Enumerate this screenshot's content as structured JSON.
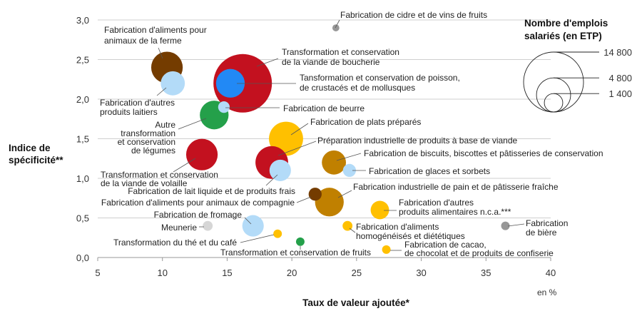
{
  "chart_data": {
    "type": "scatter",
    "subtype": "bubble",
    "xlabel": "Taux de valeur ajoutée*",
    "xunit": "en %",
    "ylabel": [
      "Indice de",
      "spécificité**"
    ],
    "xlim": [
      5,
      40
    ],
    "ylim": [
      0,
      3.0
    ],
    "xticks": [
      "5",
      "10",
      "15",
      "20",
      "25",
      "30",
      "35",
      "40"
    ],
    "yticks": [
      "0,0",
      "0,5",
      "1,0",
      "1,5",
      "2,0",
      "2,5",
      "3,0"
    ],
    "grid": "horizontal",
    "size_legend": {
      "title": [
        "Nombre d'emplois",
        "salariés (en ETP)"
      ],
      "placement": "top-right",
      "entries": [
        {
          "value": 14800,
          "label": "14 800"
        },
        {
          "value": 4800,
          "label": "4 800"
        },
        {
          "value": 1400,
          "label": "1 400"
        }
      ]
    },
    "colors": {
      "red": "#c3111f",
      "dark_brown": "#743c00",
      "ochre": "#c08000",
      "yellow": "#ffc000",
      "light_blue": "#b3dbf8",
      "blue": "#2289f5",
      "green": "#24a04a",
      "grey": "#979797",
      "light_grey": "#d6d6d6"
    },
    "points": [
      {
        "label": [
          "Fabrication de cidre et de vins de fruits"
        ],
        "x": 23.4,
        "y": 2.9,
        "size": 200,
        "color": "#979797"
      },
      {
        "label": [
          "Fabrication d'aliments pour",
          "animaux de la ferme"
        ],
        "x": 10.35,
        "y": 2.4,
        "size": 4100,
        "color": "#743c00"
      },
      {
        "label": [
          "Fabrication d'autres",
          "produits laitiers"
        ],
        "x": 10.8,
        "y": 2.2,
        "size": 2400,
        "color": "#b3dbf8"
      },
      {
        "label": [
          "Transformation et conservation",
          "de la viande de boucherie"
        ],
        "x": 16.2,
        "y": 2.2,
        "size": 14100,
        "color": "#c3111f"
      },
      {
        "label": [
          "Tansformation et conservation de poisson,",
          "de crustacés et de mollusques"
        ],
        "x": 15.25,
        "y": 2.2,
        "size": 3400,
        "color": "#2289f5"
      },
      {
        "label": [
          "Fabrication de beurre"
        ],
        "x": 14.75,
        "y": 1.9,
        "size": 550,
        "color": "#b3dbf8"
      },
      {
        "label": [
          "Autre",
          "transformation",
          "et conservation",
          "de légumes"
        ],
        "x": 14.0,
        "y": 1.8,
        "size": 3400,
        "color": "#24a04a"
      },
      {
        "label": [
          "Fabrication de plats préparés"
        ],
        "x": 19.55,
        "y": 1.5,
        "size": 4800,
        "color": "#ffc000"
      },
      {
        "label": [
          "Transformation et conservation",
          "de la viande de volaille"
        ],
        "x": 13.05,
        "y": 1.3,
        "size": 4100,
        "color": "#c3111f"
      },
      {
        "label": [
          "Préparation industrielle de produits à base de viande"
        ],
        "x": 18.45,
        "y": 1.2,
        "size": 4400,
        "color": "#c3111f"
      },
      {
        "label": [
          "Fabrication de lait liquide et de produits frais"
        ],
        "x": 19.1,
        "y": 1.1,
        "size": 1900,
        "color": "#b3dbf8"
      },
      {
        "label": [
          "Fabrication de biscuits, biscottes et pâtisseries de conservation"
        ],
        "x": 23.25,
        "y": 1.2,
        "size": 2400,
        "color": "#c08000"
      },
      {
        "label": [
          "Fabrication de glaces et sorbets"
        ],
        "x": 24.45,
        "y": 1.1,
        "size": 700,
        "color": "#b3dbf8"
      },
      {
        "label": [
          "Fabrication industrielle de pain et de pâtisserie fraîche"
        ],
        "x": 22.9,
        "y": 0.7,
        "size": 3400,
        "color": "#c08000"
      },
      {
        "label": [
          "Fabrication d'aliments pour animaux de compagnie"
        ],
        "x": 21.8,
        "y": 0.8,
        "size": 700,
        "color": "#743c00"
      },
      {
        "label": [
          "Fabrication d'autres",
          "produits alimentaires n.c.a.***"
        ],
        "x": 26.8,
        "y": 0.6,
        "size": 1400,
        "color": "#ffc000"
      },
      {
        "label": [
          "Fabrication de fromage"
        ],
        "x": 17.0,
        "y": 0.4,
        "size": 1900,
        "color": "#b3dbf8"
      },
      {
        "label": [
          "Meunerie"
        ],
        "x": 13.5,
        "y": 0.4,
        "size": 400,
        "color": "#d6d6d6"
      },
      {
        "label": [
          "Transformation du thé et du café"
        ],
        "x": 18.9,
        "y": 0.3,
        "size": 300,
        "color": "#ffc000"
      },
      {
        "label": [
          "Transformation et conservation de fruits"
        ],
        "x": 20.65,
        "y": 0.2,
        "size": 300,
        "color": "#24a04a"
      },
      {
        "label": [
          "Fabrication d'aliments",
          "homogénéisés et diététiques"
        ],
        "x": 24.3,
        "y": 0.4,
        "size": 400,
        "color": "#ffc000"
      },
      {
        "label": [
          "Fabrication de cacao,",
          "de chocolat et de produits de confiserie"
        ],
        "x": 27.3,
        "y": 0.1,
        "size": 300,
        "color": "#ffc000"
      },
      {
        "label": [
          "Fabrication",
          "de bière"
        ],
        "x": 36.5,
        "y": 0.4,
        "size": 300,
        "color": "#979797"
      }
    ]
  }
}
